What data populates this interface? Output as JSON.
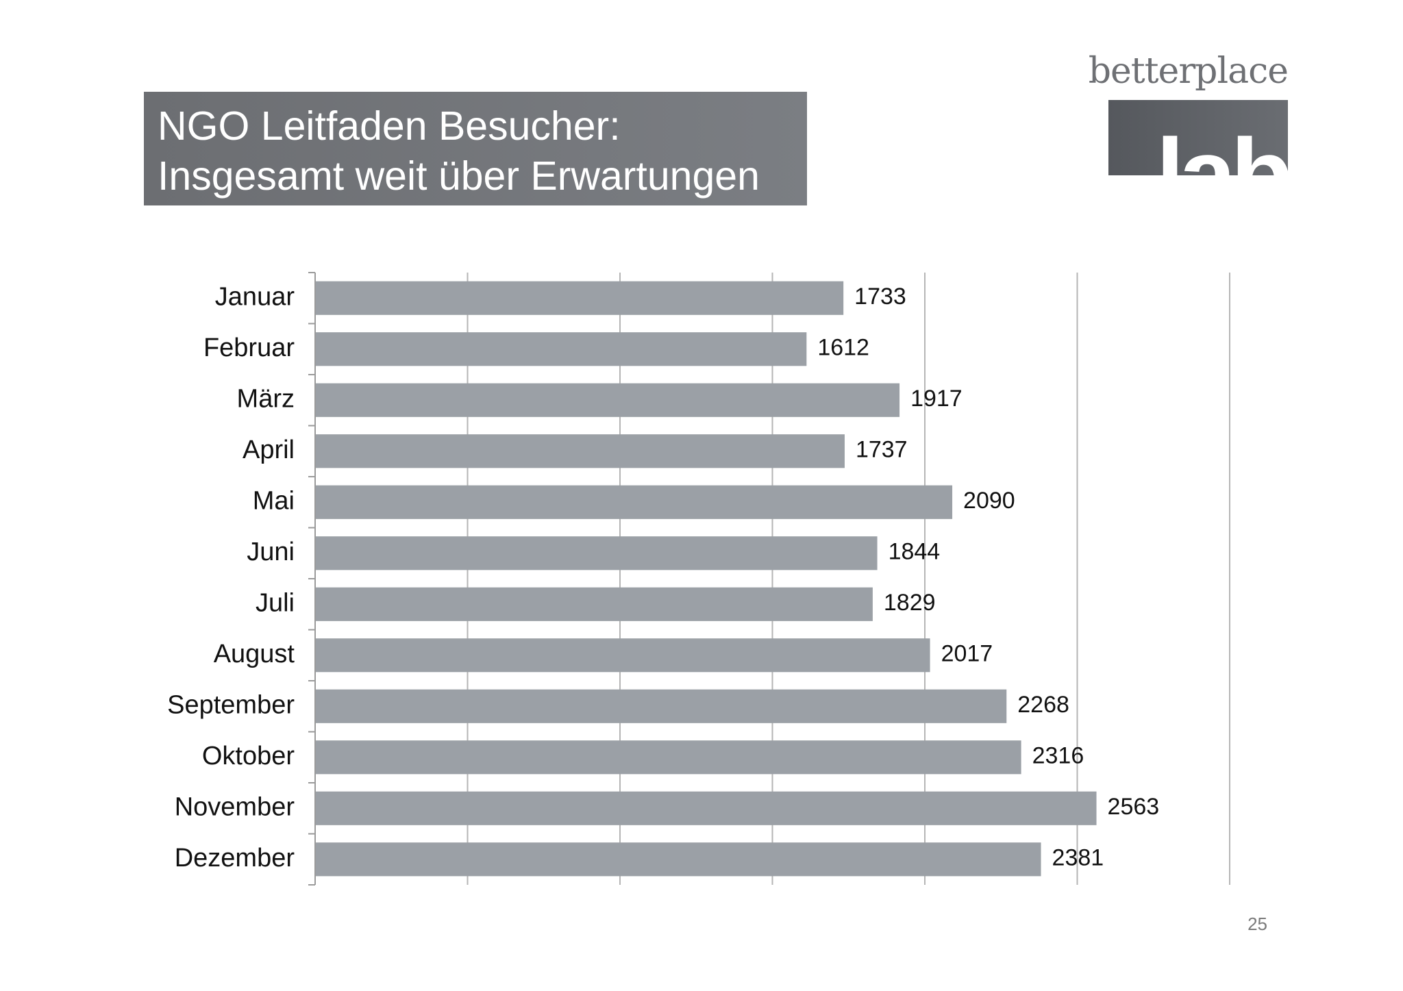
{
  "slide": {
    "title_line1": "NGO Leitfaden Besucher:",
    "title_line2": "Insgesamt weit über Erwartungen",
    "page_number": "25",
    "title_bg_color": "#6c6e72"
  },
  "logo": {
    "text": "betterplace",
    "word": "lab",
    "color": "#55585d"
  },
  "chart_data": {
    "type": "bar",
    "orientation": "horizontal",
    "categories": [
      "Januar",
      "Februar",
      "März",
      "April",
      "Mai",
      "Juni",
      "Juli",
      "August",
      "September",
      "Oktober",
      "November",
      "Dezember"
    ],
    "values": [
      1733,
      1612,
      1917,
      1737,
      2090,
      1844,
      1829,
      2017,
      2268,
      2316,
      2563,
      2381
    ],
    "xlim": [
      0,
      3000
    ],
    "x_gridlines": [
      500,
      1000,
      1500,
      2000,
      2500,
      3000
    ],
    "grid": true,
    "data_labels": true,
    "bar_color": "#9ba0a6",
    "title": "",
    "xlabel": "",
    "ylabel": ""
  }
}
